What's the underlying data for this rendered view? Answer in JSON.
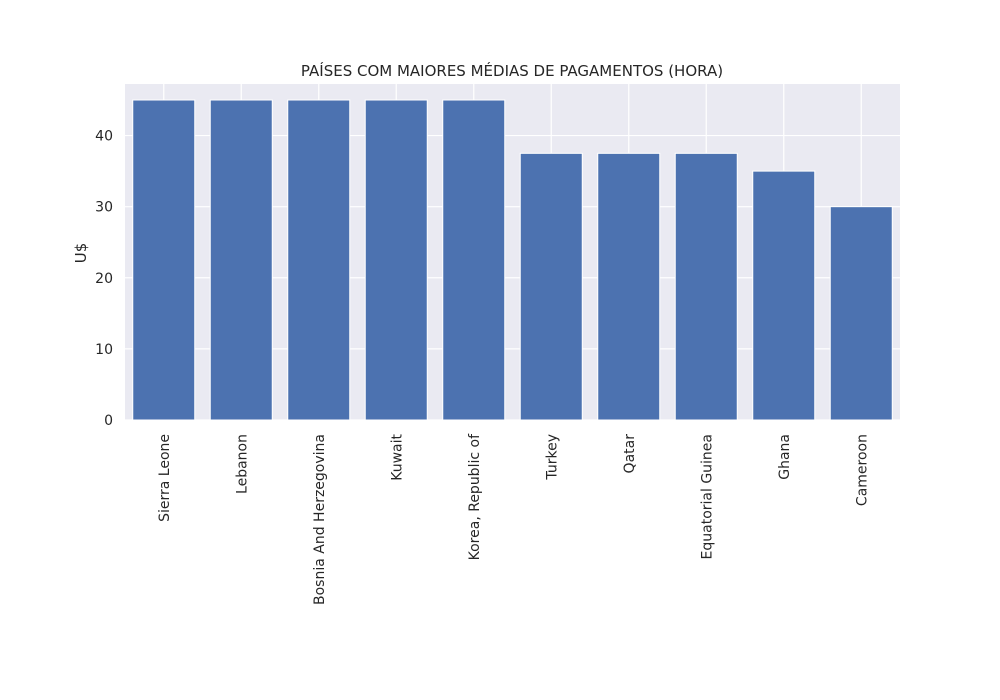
{
  "chart_data": {
    "type": "bar",
    "title": "PAÍSES COM MAIORES MÉDIAS DE PAGAMENTOS (HORA)",
    "xlabel": "",
    "ylabel": "U$",
    "categories": [
      "Sierra Leone",
      "Lebanon",
      "Bosnia And Herzegovina",
      "Kuwait",
      "Korea, Republic of",
      "Turkey",
      "Qatar",
      "Equatorial Guinea",
      "Ghana",
      "Cameroon"
    ],
    "values": [
      45,
      45,
      45,
      45,
      45,
      37.5,
      37.5,
      37.5,
      35,
      30
    ],
    "ylim": [
      0,
      47.25
    ],
    "yticks": [
      0,
      10,
      20,
      30,
      40
    ],
    "grid": true,
    "colors": {
      "bar": "#4c72b0",
      "plot_background": "#eaeaf2",
      "grid": "#ffffff",
      "text": "#262626"
    }
  }
}
